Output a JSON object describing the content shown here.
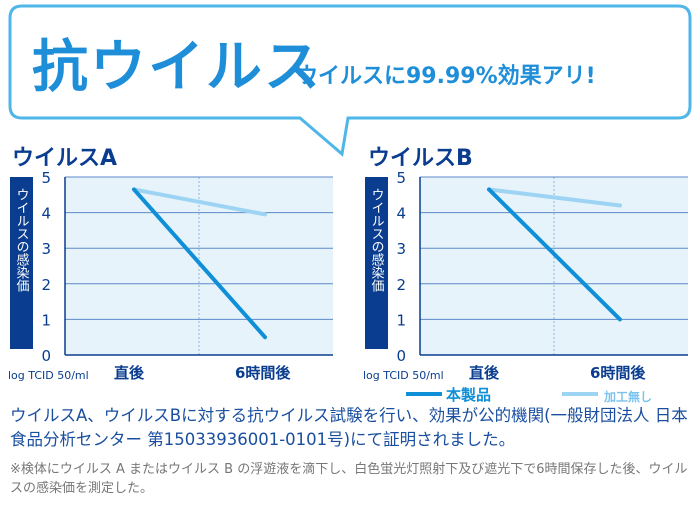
{
  "header": {
    "title": "抗ウイルス",
    "subtitle": "ウイルスに99.99%効果アリ!"
  },
  "colors": {
    "product": "#0e8fd8",
    "untreated": "#9dd4f3",
    "axis_label_bg": "#0a3d8f",
    "plot_bg": "#e6f3fb",
    "grid": "#5d8ac9"
  },
  "legend": {
    "product": "本製品",
    "untreated": "加工無し"
  },
  "chart_data": [
    {
      "type": "line",
      "title": "ウイルスA",
      "ylabel": "ウイルスの感染価",
      "unit": "log TCID 50/ml",
      "ylim": [
        0,
        5
      ],
      "yticks": [
        "0",
        "1",
        "2",
        "3",
        "4",
        "5"
      ],
      "categories": [
        "直後",
        "6時間後"
      ],
      "series": [
        {
          "name": "本製品",
          "values": [
            4.65,
            0.5
          ]
        },
        {
          "name": "加工無し",
          "values": [
            4.65,
            3.95
          ]
        }
      ]
    },
    {
      "type": "line",
      "title": "ウイルスB",
      "ylabel": "ウイルスの感染価",
      "unit": "log TCID 50/ml",
      "ylim": [
        0,
        5
      ],
      "yticks": [
        "0",
        "1",
        "2",
        "3",
        "4",
        "5"
      ],
      "categories": [
        "直後",
        "6時間後"
      ],
      "series": [
        {
          "name": "本製品",
          "values": [
            4.65,
            1.0
          ]
        },
        {
          "name": "加工無し",
          "values": [
            4.65,
            4.2
          ]
        }
      ]
    }
  ],
  "description": "ウイルスA、ウイルスBに対する抗ウイルス試験を行い、効果が公的機関(一般財団法人 日本食品分析センター 第15033936001-0101号)にて証明されました。",
  "note": "※検体にウイルス A またはウイルス B の浮遊液を滴下し、白色蛍光灯照射下及び遮光下で6時間保存した後、ウイルスの感染価を測定した。"
}
